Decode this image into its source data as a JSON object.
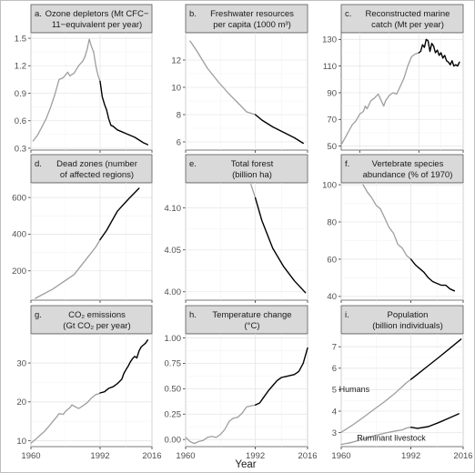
{
  "figure": {
    "x_axis_title": "Year",
    "colors": {
      "before_1992": "#9e9e9e",
      "after_1992": "#000000",
      "strip_fill": "#d9d9d9",
      "border": "#595959",
      "grid": "#e6e6e6"
    }
  },
  "chart_data": [
    {
      "type": "line",
      "panel_label": "a.",
      "title_lines": [
        "Ozone depletors (Mt CFC−",
        "11−equivalent per year)"
      ],
      "xlim": [
        1960,
        2016
      ],
      "ylim": [
        0.28,
        1.56
      ],
      "xticks": [
        1960,
        1992,
        2016
      ],
      "x_tick_labels": [
        "",
        "",
        ""
      ],
      "yticks": [
        0.3,
        0.6,
        0.9,
        1.2,
        1.5
      ],
      "y_tick_labels": [
        "0.3",
        "0.6",
        "0.9",
        "1.2",
        "1.5"
      ],
      "split_year": 1992,
      "series": [
        {
          "x": [
            1961,
            1963,
            1965,
            1967,
            1969,
            1971,
            1973,
            1975,
            1977,
            1978,
            1980,
            1982,
            1984,
            1985,
            1986,
            1987,
            1988,
            1989,
            1990,
            1991,
            1992
          ],
          "y": [
            0.38,
            0.44,
            0.53,
            0.62,
            0.74,
            0.88,
            1.05,
            1.07,
            1.13,
            1.09,
            1.12,
            1.2,
            1.25,
            1.3,
            1.38,
            1.49,
            1.41,
            1.35,
            1.2,
            1.1,
            1.03
          ]
        },
        {
          "x": [
            1992,
            1993,
            1994,
            1995,
            1996,
            1997,
            1998,
            1999,
            2000,
            2002,
            2004,
            2006,
            2008,
            2010,
            2012,
            2014
          ],
          "y": [
            1.03,
            0.86,
            0.78,
            0.72,
            0.62,
            0.55,
            0.54,
            0.52,
            0.5,
            0.48,
            0.46,
            0.44,
            0.42,
            0.39,
            0.36,
            0.34
          ]
        }
      ],
      "annotations": []
    },
    {
      "type": "line",
      "panel_label": "b.",
      "title_lines": [
        "Freshwater resources",
        "per capita (1000 m³)"
      ],
      "xlim": [
        1960,
        2016
      ],
      "ylim": [
        5.4,
        14.0
      ],
      "xticks": [
        1960,
        1992,
        2016
      ],
      "x_tick_labels": [
        "",
        "",
        ""
      ],
      "yticks": [
        6,
        8,
        10,
        12
      ],
      "y_tick_labels": [
        "6",
        "8",
        "10",
        "12"
      ],
      "split_year": 1992,
      "series": [
        {
          "x": [
            1962,
            1965,
            1970,
            1975,
            1980,
            1985,
            1988,
            1990,
            1992
          ],
          "y": [
            13.4,
            12.7,
            11.4,
            10.4,
            9.5,
            8.7,
            8.2,
            8.1,
            8.0
          ]
        },
        {
          "x": [
            1992,
            1995,
            2000,
            2005,
            2010,
            2014
          ],
          "y": [
            8.0,
            7.6,
            7.1,
            6.7,
            6.3,
            5.9
          ]
        }
      ],
      "annotations": []
    },
    {
      "type": "line",
      "panel_label": "c.",
      "title_lines": [
        "Reconstructed marine",
        "catch (Mt per year)"
      ],
      "xlim": [
        1950,
        2016
      ],
      "ylim": [
        47,
        135
      ],
      "xticks": [
        1960,
        1992,
        2016
      ],
      "x_tick_labels": [
        "",
        "",
        ""
      ],
      "yticks": [
        50,
        70,
        90,
        110,
        130
      ],
      "y_tick_labels": [
        "50",
        "70",
        "90",
        "110",
        "130"
      ],
      "split_year": 1992,
      "series": [
        {
          "x": [
            1950,
            1952,
            1954,
            1956,
            1958,
            1960,
            1962,
            1963,
            1964,
            1966,
            1968,
            1970,
            1972,
            1973,
            1974,
            1976,
            1978,
            1980,
            1982,
            1984,
            1986,
            1988,
            1990,
            1992
          ],
          "y": [
            51,
            56,
            61,
            66,
            69,
            74,
            76,
            80,
            78,
            84,
            86,
            89,
            83,
            80,
            84,
            88,
            90,
            89,
            95,
            101,
            110,
            117,
            119,
            120
          ]
        },
        {
          "x": [
            1992,
            1993,
            1994,
            1995,
            1996,
            1997,
            1998,
            1999,
            2000,
            2001,
            2002,
            2003,
            2004,
            2005,
            2006,
            2007,
            2008,
            2009,
            2010,
            2011,
            2012,
            2013,
            2014
          ],
          "y": [
            120,
            121,
            126,
            124,
            130,
            129,
            121,
            127,
            125,
            120,
            122,
            118,
            120,
            116,
            118,
            114,
            113,
            111,
            114,
            110,
            111,
            110,
            113
          ]
        }
      ],
      "annotations": []
    },
    {
      "type": "line",
      "panel_label": "d.",
      "title_lines": [
        "Dead zones (number",
        "of affected regions)"
      ],
      "xlim": [
        1960,
        2016
      ],
      "ylim": [
        40,
        680
      ],
      "xticks": [
        1960,
        1992,
        2016
      ],
      "x_tick_labels": [
        "",
        "",
        ""
      ],
      "yticks": [
        200,
        400,
        600
      ],
      "y_tick_labels": [
        "200",
        "400",
        "600"
      ],
      "split_year": 1992,
      "series": [
        {
          "x": [
            1962,
            1970,
            1980,
            1985,
            1990,
            1992
          ],
          "y": [
            50,
            100,
            180,
            255,
            330,
            370
          ]
        },
        {
          "x": [
            1992,
            1995,
            2000,
            2005,
            2010
          ],
          "y": [
            370,
            420,
            525,
            590,
            650
          ]
        }
      ],
      "annotations": []
    },
    {
      "type": "line",
      "panel_label": "e.",
      "title_lines": [
        "Total forest",
        "(billion ha)"
      ],
      "xlim": [
        1960,
        2016
      ],
      "ylim": [
        3.99,
        4.13
      ],
      "xticks": [
        1960,
        1992,
        2016
      ],
      "x_tick_labels": [
        "",
        "",
        ""
      ],
      "yticks": [
        4.0,
        4.05,
        4.1
      ],
      "y_tick_labels": [
        "4.00",
        "4.05",
        "4.10"
      ],
      "split_year": 1992,
      "series": [
        {
          "x": [
            1990,
            1992
          ],
          "y": [
            4.128,
            4.112
          ]
        },
        {
          "x": [
            1992,
            1995,
            2000,
            2005,
            2010,
            2015
          ],
          "y": [
            4.112,
            4.085,
            4.052,
            4.03,
            4.013,
            3.999
          ]
        }
      ],
      "annotations": []
    },
    {
      "type": "line",
      "panel_label": "f.",
      "title_lines": [
        "Vertebrate species",
        "abundance (% of 1970)"
      ],
      "xlim": [
        1960,
        2016
      ],
      "ylim": [
        38,
        101
      ],
      "xticks": [
        1960,
        1992,
        2016
      ],
      "x_tick_labels": [
        "",
        "",
        ""
      ],
      "yticks": [
        40,
        60,
        80,
        100
      ],
      "y_tick_labels": [
        "40",
        "60",
        "80",
        "100"
      ],
      "split_year": 1992,
      "series": [
        {
          "x": [
            1970,
            1972,
            1974,
            1976,
            1978,
            1980,
            1982,
            1984,
            1986,
            1988,
            1990,
            1992
          ],
          "y": [
            100,
            96,
            93,
            89,
            87,
            82,
            77,
            74,
            68,
            66,
            62,
            60
          ]
        },
        {
          "x": [
            1992,
            1994,
            1996,
            1998,
            2000,
            2002,
            2004,
            2006,
            2008,
            2010,
            2012
          ],
          "y": [
            60,
            57,
            55,
            53,
            50,
            48,
            47,
            46,
            46,
            44,
            43
          ]
        }
      ],
      "annotations": []
    },
    {
      "type": "line",
      "panel_label": "g.",
      "title_lines": [
        "CO₂ emissions",
        "(Gt CO₂ per year)"
      ],
      "xlim": [
        1960,
        2016
      ],
      "ylim": [
        8.5,
        37.5
      ],
      "xticks": [
        1960,
        1992,
        2016
      ],
      "x_tick_labels": [
        "1960",
        "1992",
        "2016"
      ],
      "yticks": [
        10,
        20,
        30
      ],
      "y_tick_labels": [
        "10",
        "20",
        "30"
      ],
      "split_year": 1992,
      "series": [
        {
          "x": [
            1960,
            1962,
            1964,
            1966,
            1968,
            1970,
            1972,
            1973,
            1974,
            1975,
            1976,
            1978,
            1979,
            1980,
            1981,
            1982,
            1983,
            1984,
            1986,
            1988,
            1990,
            1991,
            1992
          ],
          "y": [
            9.4,
            10.3,
            11.3,
            12.3,
            13.5,
            14.9,
            16.2,
            17.0,
            16.9,
            16.8,
            17.6,
            18.5,
            19.2,
            18.9,
            18.6,
            18.3,
            18.6,
            19.0,
            19.8,
            21.0,
            21.9,
            22.0,
            22.3
          ]
        },
        {
          "x": [
            1992,
            1994,
            1996,
            1998,
            2000,
            2002,
            2003,
            2004,
            2005,
            2006,
            2007,
            2008,
            2009,
            2010,
            2011,
            2012,
            2013,
            2014
          ],
          "y": [
            22.3,
            22.6,
            23.5,
            23.9,
            24.7,
            25.8,
            27.3,
            28.3,
            29.2,
            30.3,
            31.1,
            31.7,
            31.3,
            33.1,
            34.1,
            34.6,
            35.1,
            35.9
          ]
        }
      ],
      "annotations": []
    },
    {
      "type": "line",
      "panel_label": "h.",
      "title_lines": [
        "Temperature change",
        "(°C)"
      ],
      "xlim": [
        1960,
        2016
      ],
      "ylim": [
        -0.07,
        1.04
      ],
      "xticks": [
        1960,
        1992,
        2016
      ],
      "x_tick_labels": [
        "1960",
        "1992",
        "2016"
      ],
      "yticks": [
        0.0,
        0.25,
        0.5,
        0.75,
        1.0
      ],
      "y_tick_labels": [
        "0.00",
        "0.25",
        "0.50",
        "0.75",
        "1.00"
      ],
      "split_year": 1992,
      "series": [
        {
          "x": [
            1960,
            1962,
            1964,
            1966,
            1968,
            1970,
            1972,
            1974,
            1976,
            1978,
            1980,
            1982,
            1984,
            1986,
            1988,
            1990,
            1992
          ],
          "y": [
            0.02,
            -0.02,
            -0.04,
            -0.02,
            -0.01,
            0.02,
            0.03,
            0.02,
            0.05,
            0.1,
            0.18,
            0.21,
            0.22,
            0.26,
            0.32,
            0.33,
            0.34
          ]
        },
        {
          "x": [
            1992,
            1994,
            1996,
            1998,
            2000,
            2002,
            2004,
            2006,
            2008,
            2010,
            2012,
            2014,
            2016
          ],
          "y": [
            0.34,
            0.36,
            0.42,
            0.48,
            0.53,
            0.58,
            0.61,
            0.62,
            0.63,
            0.64,
            0.67,
            0.75,
            0.9
          ]
        }
      ],
      "annotations": []
    },
    {
      "type": "line",
      "panel_label": "i.",
      "title_lines": [
        "Population",
        "(billion individuals)"
      ],
      "xlim": [
        1960,
        2016
      ],
      "ylim": [
        2.35,
        7.6
      ],
      "xticks": [
        1960,
        1992,
        2016
      ],
      "x_tick_labels": [
        "1960",
        "1992",
        "2016"
      ],
      "yticks": [
        3,
        4,
        5,
        6,
        7
      ],
      "y_tick_labels": [
        "3",
        "4",
        "5",
        "6",
        "7"
      ],
      "split_year": 1992,
      "series": [
        {
          "name": "Humans",
          "x": [
            1960,
            1965,
            1970,
            1975,
            1980,
            1985,
            1990,
            1992
          ],
          "y": [
            3.02,
            3.34,
            3.7,
            4.08,
            4.45,
            4.86,
            5.33,
            5.48
          ]
        },
        {
          "x": [
            1992,
            1995,
            2000,
            2005,
            2010,
            2015
          ],
          "y": [
            5.48,
            5.72,
            6.12,
            6.52,
            6.93,
            7.35
          ]
        },
        {
          "name": "Ruminant livestock",
          "x": [
            1960,
            1965,
            1970,
            1975,
            1980,
            1985,
            1988,
            1990,
            1992
          ],
          "y": [
            2.45,
            2.55,
            2.7,
            2.85,
            2.98,
            3.08,
            3.13,
            3.22,
            3.25
          ]
        },
        {
          "x": [
            1992,
            1995,
            2000,
            2005,
            2010,
            2014
          ],
          "y": [
            3.25,
            3.2,
            3.28,
            3.48,
            3.7,
            3.88
          ]
        }
      ],
      "annotations": [
        {
          "text": "Humans",
          "at_year": 1966,
          "at_value": 4.9
        },
        {
          "text": "Ruminant livestock",
          "at_year": 1983,
          "at_value": 2.62
        }
      ]
    }
  ]
}
